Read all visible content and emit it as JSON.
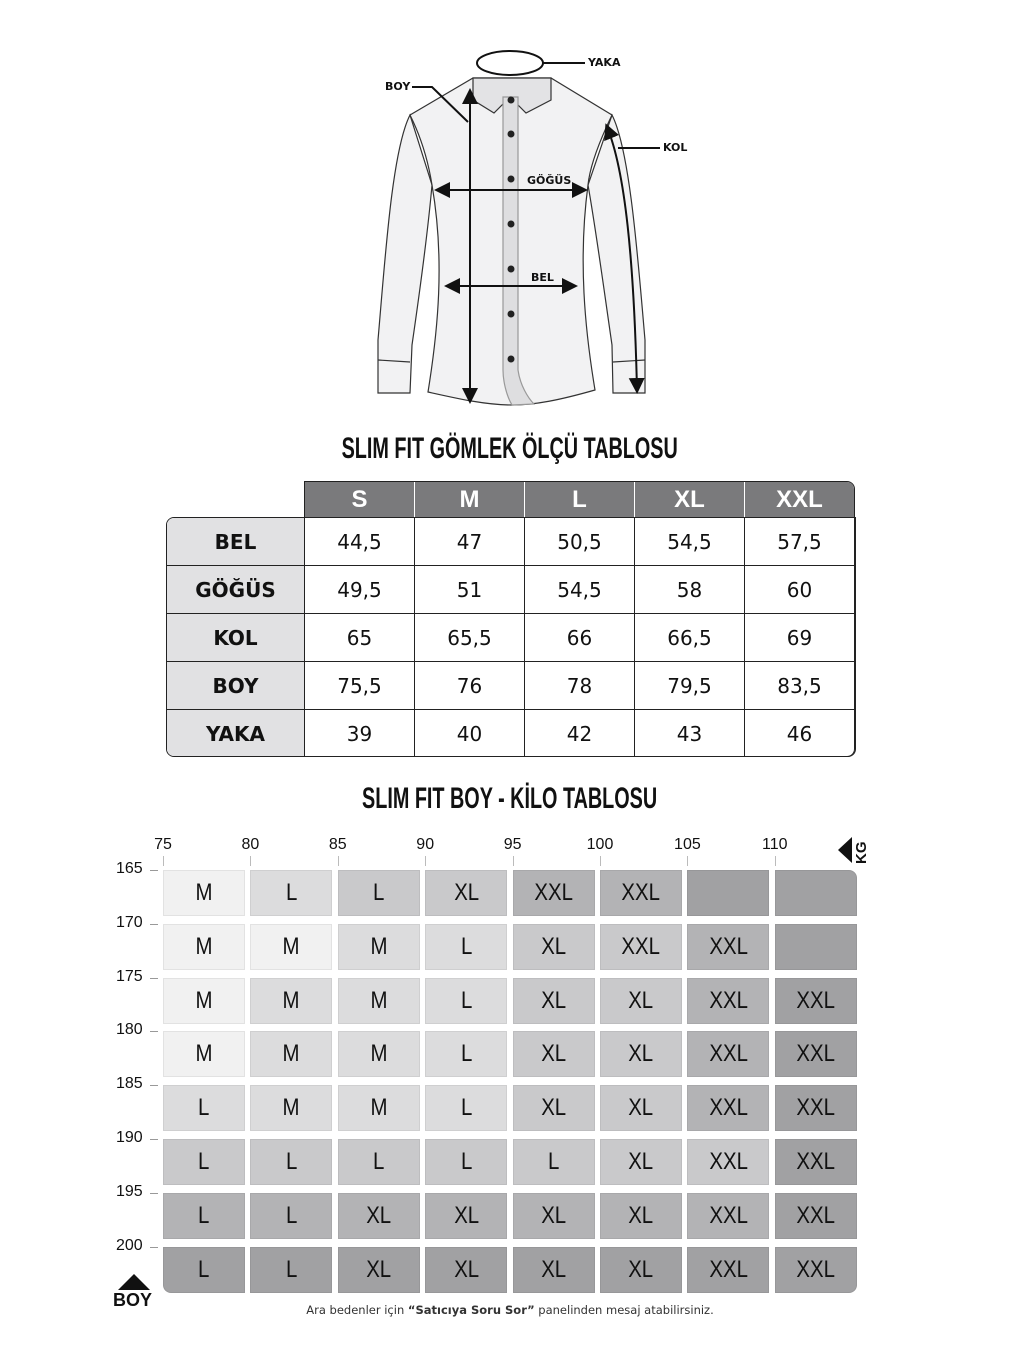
{
  "diagram": {
    "labels": {
      "yaka": "YAKA",
      "boy": "BOY",
      "kol": "KOL",
      "gogus": "GÖĞÜS",
      "bel": "BEL"
    }
  },
  "measure_table": {
    "title": "SLIM FIT GÖMLEK ÖLÇÜ TABLOSU",
    "columns": [
      "S",
      "M",
      "L",
      "XL",
      "XXL"
    ],
    "rows": [
      {
        "label": "BEL",
        "values": [
          "44,5",
          "47",
          "50,5",
          "54,5",
          "57,5"
        ]
      },
      {
        "label": "GÖĞÜS",
        "values": [
          "49,5",
          "51",
          "54,5",
          "58",
          "60"
        ]
      },
      {
        "label": "KOL",
        "values": [
          "65",
          "65,5",
          "66",
          "66,5",
          "69"
        ]
      },
      {
        "label": "BOY",
        "values": [
          "75,5",
          "76",
          "78",
          "79,5",
          "83,5"
        ]
      },
      {
        "label": "YAKA",
        "values": [
          "39",
          "40",
          "42",
          "43",
          "46"
        ]
      }
    ],
    "header_color": "#7a7a7c",
    "label_bg_color": "#e1e1e3"
  },
  "size_grid": {
    "title": "SLIM FIT BOY - KİLO TABLOSU",
    "x_axis_label": "KG",
    "y_axis_label": "BOY",
    "weights": [
      "75",
      "80",
      "85",
      "90",
      "95",
      "100",
      "105",
      "110"
    ],
    "heights": [
      "165",
      "170",
      "175",
      "180",
      "185",
      "190",
      "195",
      "200"
    ],
    "cells": [
      [
        "M",
        "L",
        "L",
        "XL",
        "XXL",
        "XXL",
        "",
        ""
      ],
      [
        "M",
        "M",
        "M",
        "L",
        "XL",
        "XXL",
        "XXL",
        ""
      ],
      [
        "M",
        "M",
        "M",
        "L",
        "XL",
        "XL",
        "XXL",
        "XXL"
      ],
      [
        "M",
        "M",
        "M",
        "L",
        "XL",
        "XL",
        "XXL",
        "XXL"
      ],
      [
        "L",
        "M",
        "M",
        "L",
        "XL",
        "XL",
        "XXL",
        "XXL"
      ],
      [
        "L",
        "L",
        "L",
        "L",
        "L",
        "XL",
        "XXL",
        "XXL"
      ],
      [
        "L",
        "L",
        "XL",
        "XL",
        "XL",
        "XL",
        "XXL",
        "XXL"
      ],
      [
        "L",
        "L",
        "XL",
        "XL",
        "XL",
        "XL",
        "XXL",
        "XXL"
      ]
    ],
    "shades": [
      [
        "#f1f1f1",
        "#dcdcdd",
        "#c9c9cb",
        "#c9c9cb",
        "#b3b3b5",
        "#b3b3b5",
        "#a1a1a3",
        "#a1a1a3"
      ],
      [
        "#f1f1f1",
        "#f1f1f1",
        "#dcdcdd",
        "#dcdcdd",
        "#c9c9cb",
        "#c9c9cb",
        "#b3b3b5",
        "#a1a1a3"
      ],
      [
        "#f1f1f1",
        "#dcdcdd",
        "#dcdcdd",
        "#dcdcdd",
        "#c9c9cb",
        "#c9c9cb",
        "#b3b3b5",
        "#a1a1a3"
      ],
      [
        "#f1f1f1",
        "#dcdcdd",
        "#dcdcdd",
        "#dcdcdd",
        "#c9c9cb",
        "#c9c9cb",
        "#b3b3b5",
        "#a1a1a3"
      ],
      [
        "#dcdcdd",
        "#dcdcdd",
        "#dcdcdd",
        "#dcdcdd",
        "#c9c9cb",
        "#c9c9cb",
        "#b3b3b5",
        "#a1a1a3"
      ],
      [
        "#c9c9cb",
        "#c9c9cb",
        "#c9c9cb",
        "#c9c9cb",
        "#c9c9cb",
        "#c9c9cb",
        "#c9c9cb",
        "#a1a1a3"
      ],
      [
        "#b3b3b5",
        "#b3b3b5",
        "#b3b3b5",
        "#b3b3b5",
        "#b3b3b5",
        "#b3b3b5",
        "#b3b3b5",
        "#a1a1a3"
      ],
      [
        "#a1a1a3",
        "#a1a1a3",
        "#a1a1a3",
        "#a1a1a3",
        "#a1a1a3",
        "#a1a1a3",
        "#a1a1a3",
        "#a1a1a3"
      ]
    ]
  },
  "footnote": {
    "before": "Ara bedenler için ",
    "bold": "“Satıcıya Soru Sor”",
    "after": " panelinden mesaj atabilirsiniz."
  }
}
